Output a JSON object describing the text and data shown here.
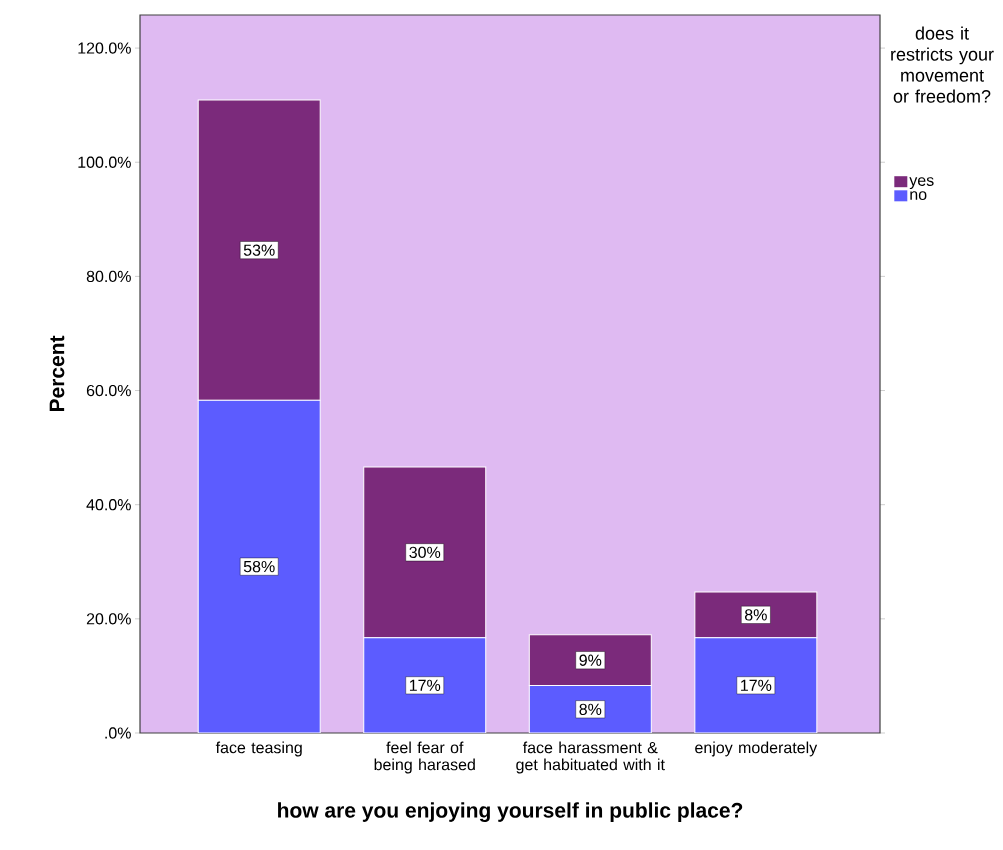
{
  "chart_data": {
    "type": "bar",
    "stacked": true,
    "xlabel": "how are you enjoying yourself in public place?",
    "ylabel": "Percent",
    "legend_title": "does it restricts your movement or freedom?",
    "legend": "top right",
    "categories": [
      "face teasing",
      "feel fear of being harased",
      "face harassment & get habituated with it",
      "enjoy moderately"
    ],
    "ylim": [
      0,
      125.8
    ],
    "yticks": [
      {
        "value": 0,
        "label": ".0%"
      },
      {
        "value": 20,
        "label": "20.0%"
      },
      {
        "value": 40,
        "label": "40.0%"
      },
      {
        "value": 60,
        "label": "60.0%"
      },
      {
        "value": 80,
        "label": "80.0%"
      },
      {
        "value": 100,
        "label": "100.0%"
      },
      {
        "value": 120,
        "label": "120.0%"
      }
    ],
    "series": [
      {
        "name": "no",
        "color": "#5c5cff",
        "values": [
          58.3,
          16.7,
          8.3,
          16.7
        ],
        "value_labels": [
          "58%",
          "17%",
          "8%",
          "17%"
        ]
      },
      {
        "name": "yes",
        "color": "#7b2a7b",
        "values": [
          52.6,
          29.9,
          8.9,
          8.0
        ],
        "value_labels": [
          "53%",
          "30%",
          "9%",
          "8%"
        ]
      }
    ]
  }
}
